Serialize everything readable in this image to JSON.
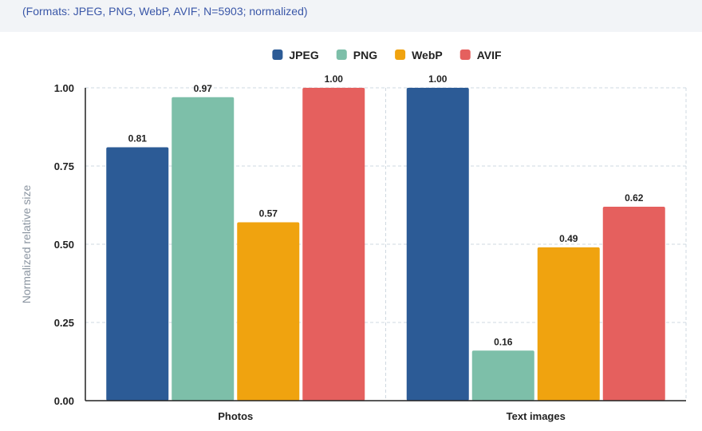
{
  "header": {
    "subtitle": "(Formats: JPEG, PNG, WebP, AVIF; N=5903; normalized)"
  },
  "chart_data": {
    "type": "bar",
    "subtitle": "(Formats: JPEG, PNG, WebP, AVIF; N=5903; normalized)",
    "categories": [
      "Photos",
      "Text images"
    ],
    "series": [
      {
        "name": "JPEG",
        "color": "#2c5b96",
        "values": [
          0.81,
          1.0
        ]
      },
      {
        "name": "PNG",
        "color": "#7dbfa9",
        "values": [
          0.97,
          0.16
        ]
      },
      {
        "name": "WebP",
        "color": "#f0a30f",
        "values": [
          0.57,
          0.49
        ]
      },
      {
        "name": "AVIF",
        "color": "#e5605e",
        "values": [
          1.0,
          0.62
        ]
      }
    ],
    "value_labels": [
      [
        "0.81",
        "1.00"
      ],
      [
        "0.97",
        "0.16"
      ],
      [
        "0.57",
        "0.49"
      ],
      [
        "1.00",
        "0.62"
      ]
    ],
    "ylabel": "Normalized relative size",
    "xlabel": "",
    "ylim": [
      0,
      1.0
    ],
    "yticks": [
      "0.00",
      "0.25",
      "0.50",
      "0.75",
      "1.00"
    ],
    "grid": true,
    "legend_position": "top-center"
  }
}
